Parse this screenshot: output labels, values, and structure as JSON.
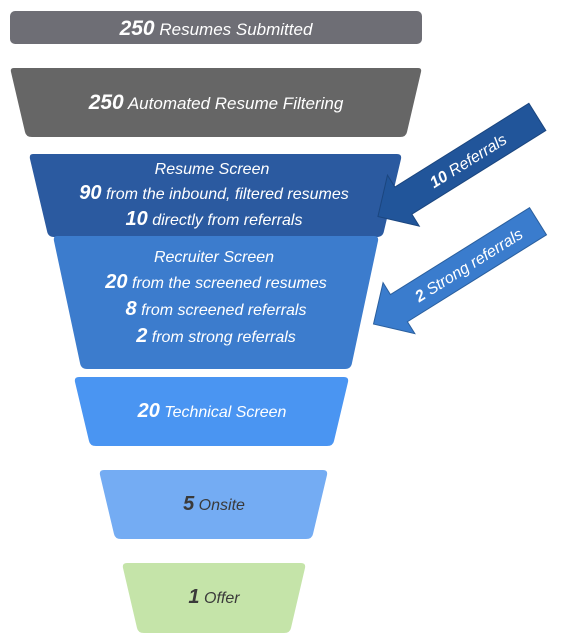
{
  "stages": [
    {
      "lines": [
        {
          "number": "250",
          "text": " Resumes Submitted"
        }
      ]
    },
    {
      "lines": [
        {
          "number": "250",
          "text": " Automated Resume Filtering"
        }
      ]
    },
    {
      "lines": [
        {
          "number": "",
          "text": "Resume Screen"
        },
        {
          "number": "90",
          "text": " from the inbound, filtered resumes"
        },
        {
          "number": "10",
          "text": " directly from referrals"
        }
      ]
    },
    {
      "lines": [
        {
          "number": "",
          "text": "Recruiter Screen"
        },
        {
          "number": "20",
          "text": " from the screened resumes"
        },
        {
          "number": "8",
          "text": " from screened referrals"
        },
        {
          "number": "2",
          "text": " from strong referrals"
        }
      ]
    },
    {
      "lines": [
        {
          "number": "20",
          "text": " Technical Screen"
        }
      ]
    },
    {
      "lines": [
        {
          "number": "5",
          "text": " Onsite"
        }
      ]
    },
    {
      "lines": [
        {
          "number": "1",
          "text": " Offer"
        }
      ]
    }
  ],
  "arrows": [
    {
      "number": "10",
      "text": " Referrals"
    },
    {
      "number": "2",
      "text": " Strong referrals"
    }
  ],
  "colors": {
    "stage_0": "#6e6e75",
    "stage_1": "#666666",
    "stage_2": "#2b5aa0",
    "stage_3": "#3c7ccd",
    "stage_4": "#4a95f2",
    "stage_5": "#74acf3",
    "stage_6": "#c5e4a9",
    "arrow_0": "#21559a",
    "arrow_1": "#3a7ccd"
  }
}
